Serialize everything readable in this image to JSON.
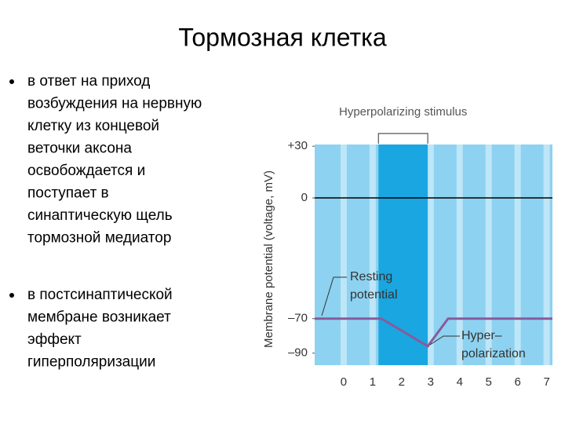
{
  "slide": {
    "title": "Тормозная клетка",
    "bullets": [
      {
        "lines": [
          "в ответ на приход",
          "возбуждения на нервную",
          "клетку из концевой",
          "веточки аксона",
          "освобождается и",
          "поступает в",
          "синаптическую щель",
          "тормозной медиатор"
        ]
      },
      {
        "lines": [
          "в постсинаптической",
          "мембране возникает",
          "эффект",
          "гиперполяризации"
        ]
      }
    ]
  },
  "chart_data": {
    "type": "line",
    "ylabel": "Membrane potential (voltage, mV)",
    "stimulus_label": "Hyperpolarizing stimulus",
    "stimulus": [
      1.2,
      2.9
    ],
    "resting_label": [
      "Resting",
      "potential"
    ],
    "hyper_label": [
      "Hyper–",
      "polarization"
    ],
    "hline": 0,
    "xlim": [
      -1,
      7.2
    ],
    "ylim": [
      -97,
      31
    ],
    "xticks": [
      0,
      1,
      2,
      3,
      4,
      5,
      6,
      7
    ],
    "yticks": [
      {
        "value": 30,
        "label": "+30"
      },
      0,
      {
        "value": -70,
        "label": "–70"
      },
      {
        "value": -90,
        "label": "–90"
      }
    ],
    "series": [
      {
        "color": "#8a5a9c",
        "x": [
          -1,
          1.3,
          2.9,
          3.6,
          7.2
        ],
        "values": [
          -70,
          -70,
          -86,
          -70,
          -70
        ]
      }
    ]
  }
}
